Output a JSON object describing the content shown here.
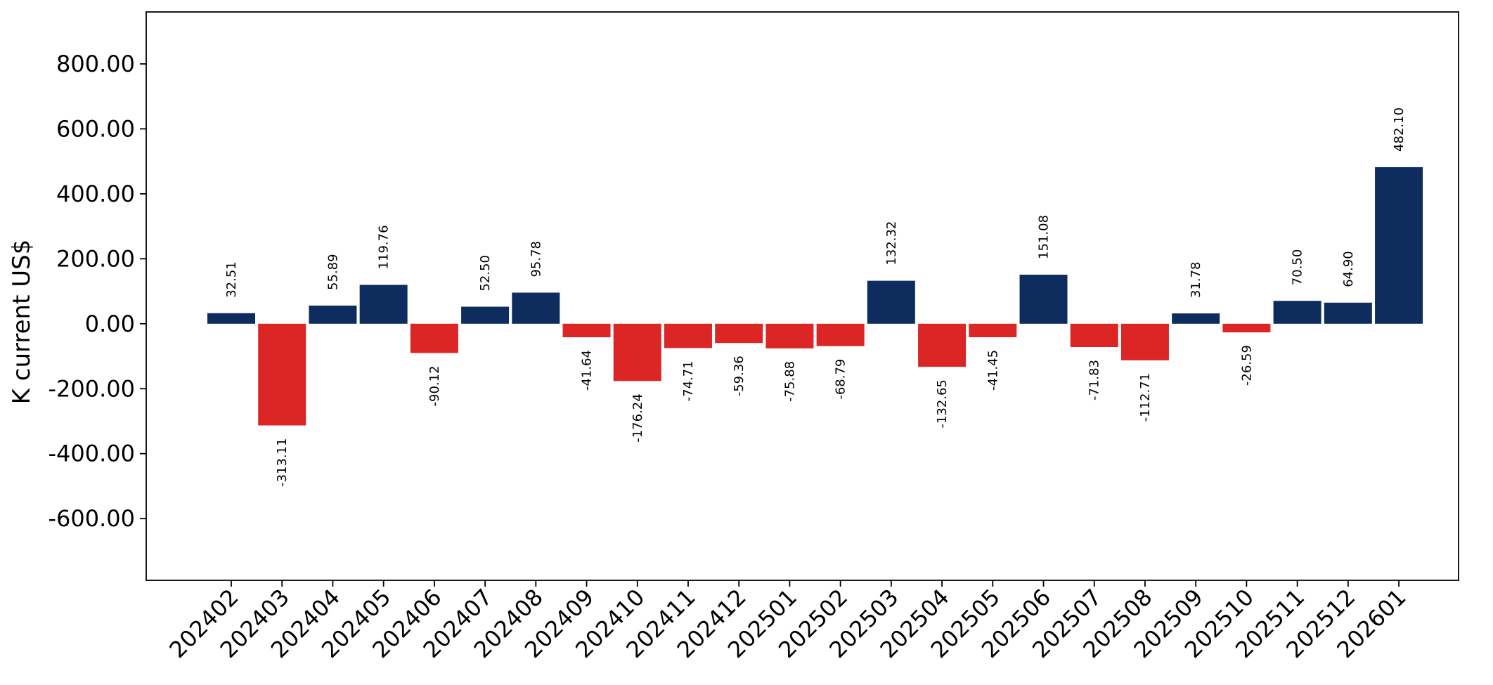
{
  "chart_data": {
    "type": "bar",
    "ylabel": "K current US$",
    "xlabel": "",
    "title": "",
    "ylim": [
      -790,
      960
    ],
    "yticks": [
      -600,
      -400,
      -200,
      0,
      200,
      400,
      600,
      800
    ],
    "ytick_labels": [
      "-600.00",
      "-400.00",
      "-200.00",
      "0.00",
      "200.00",
      "400.00",
      "600.00",
      "800.00"
    ],
    "grid": false,
    "legend": "none",
    "colors": {
      "positive": "#0e2d5e",
      "negative": "#dc2626"
    },
    "categories": [
      "202402",
      "202403",
      "202404",
      "202405",
      "202406",
      "202407",
      "202408",
      "202409",
      "202410",
      "202411",
      "202412",
      "202501",
      "202502",
      "202503",
      "202504",
      "202505",
      "202506",
      "202507",
      "202508",
      "202509",
      "202510",
      "202511",
      "202512",
      "202601"
    ],
    "values": [
      32.51,
      -313.11,
      55.89,
      119.76,
      -90.12,
      52.5,
      95.78,
      -41.64,
      -176.24,
      -74.71,
      -59.36,
      -75.88,
      -68.79,
      132.32,
      -132.65,
      -41.45,
      151.08,
      -71.83,
      -112.71,
      31.78,
      -26.59,
      70.5,
      64.9,
      482.1
    ],
    "value_labels": [
      "32.51",
      "-313.11",
      "55.89",
      "119.76",
      "-90.12",
      "52.50",
      "95.78",
      "-41.64",
      "-176.24",
      "-74.71",
      "-59.36",
      "-75.88",
      "-68.79",
      "132.32",
      "-132.65",
      "-41.45",
      "151.08",
      "-71.83",
      "-112.71",
      "31.78",
      "-26.59",
      "70.50",
      "64.90",
      "482.10"
    ]
  }
}
